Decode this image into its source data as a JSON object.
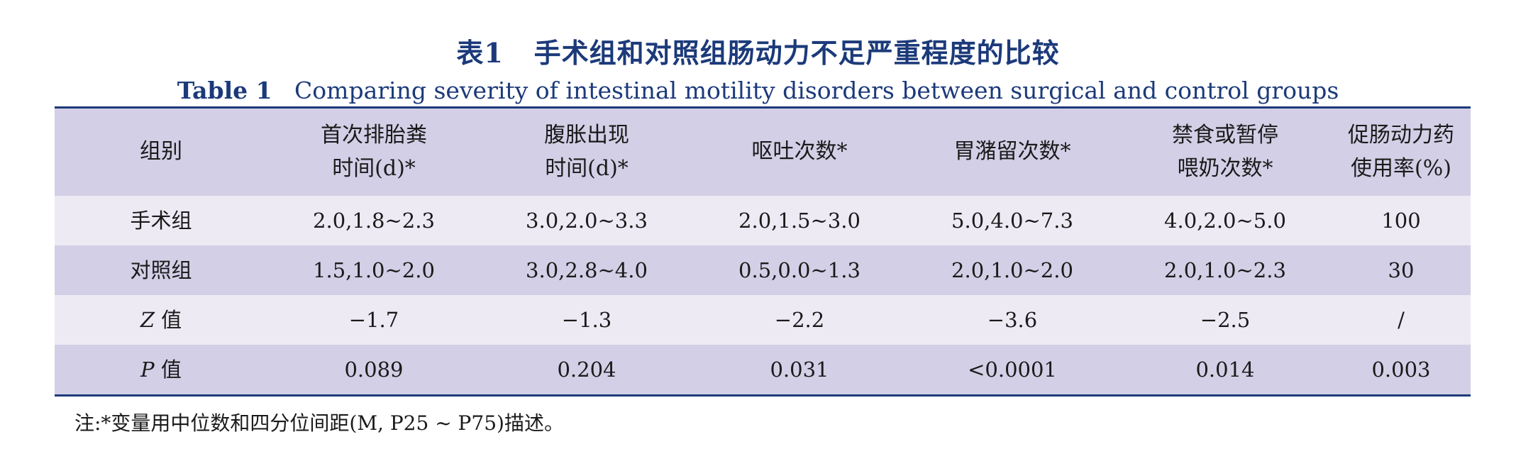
{
  "title": {
    "cn_label": "表1",
    "cn_text": "手术组和对照组肠动力不足严重程度的比较",
    "en_label": "Table 1",
    "en_text": "Comparing severity of intestinal motility disorders between surgical and control groups"
  },
  "table": {
    "headers": [
      {
        "line1": "组别",
        "line2": ""
      },
      {
        "line1": "首次排胎粪",
        "line2": "时间(d)*"
      },
      {
        "line1": "腹胀出现",
        "line2": "时间(d)*"
      },
      {
        "line1": "呕吐次数*",
        "line2": ""
      },
      {
        "line1": "胃潴留次数*",
        "line2": ""
      },
      {
        "line1": "禁食或暂停",
        "line2": "喂奶次数*"
      },
      {
        "line1": "促肠动力药",
        "line2": "使用率(%)"
      }
    ],
    "rows": [
      {
        "label_italic": "",
        "label": "手术组",
        "cells": [
          "2.0,1.8~2.3",
          "3.0,2.0~3.3",
          "2.0,1.5~3.0",
          "5.0,4.0~7.3",
          "4.0,2.0~5.0",
          "100"
        ]
      },
      {
        "label_italic": "",
        "label": "对照组",
        "cells": [
          "1.5,1.0~2.0",
          "3.0,2.8~4.0",
          "0.5,0.0~1.3",
          "2.0,1.0~2.0",
          "2.0,1.0~2.3",
          "30"
        ]
      },
      {
        "label_italic": "Z",
        "label": " 值",
        "cells": [
          "−1.7",
          "−1.3",
          "−2.2",
          "−3.6",
          "−2.5",
          "/"
        ]
      },
      {
        "label_italic": "P",
        "label": " 值",
        "cells": [
          "0.089",
          "0.204",
          "0.031",
          "<0.0001",
          "0.014",
          "0.003"
        ]
      }
    ]
  },
  "note": "注:*变量用中位数和四分位间距(M, P25 ~ P75)描述。"
}
